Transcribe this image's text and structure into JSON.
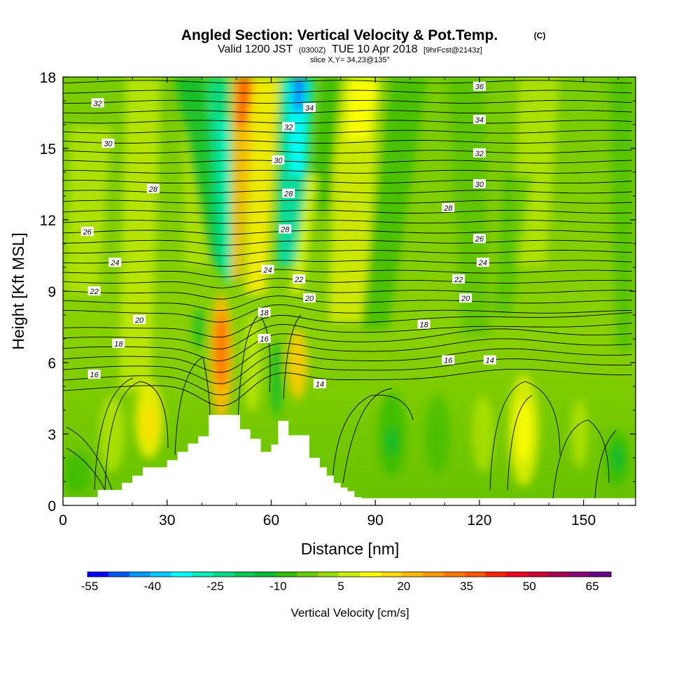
{
  "header": {
    "title": "Angled Section: Vertical Velocity & Pot.Temp.",
    "title_unit": "(C)",
    "valid_prefix": "Valid 1200 JST",
    "valid_utc": "(0300Z)",
    "valid_date": "TUE 10 Apr 2018",
    "forecast": "[9hrFcst@2143z]",
    "slice": "slice X,Y= 34,23@135°"
  },
  "chart_data": {
    "type": "heatmap",
    "title": "Angled Section: Vertical Velocity & Pot.Temp.",
    "xlabel": "Distance [nm]",
    "ylabel": "Height [Kft MSL]",
    "xlim": [
      0,
      165
    ],
    "ylim": [
      0,
      18
    ],
    "x_ticks": [
      "0",
      "30",
      "60",
      "90",
      "120",
      "150"
    ],
    "y_ticks": [
      "0",
      "3",
      "6",
      "9",
      "12",
      "15",
      "18"
    ],
    "colorbar": {
      "label": "Vertical Velocity [cm/s]",
      "tick_labels": [
        "-55",
        "-40",
        "-25",
        "-10",
        "5",
        "20",
        "35",
        "50",
        "65"
      ],
      "colors": [
        "#0000ff",
        "#0055ff",
        "#0099ff",
        "#00ccff",
        "#00ffff",
        "#00eebb",
        "#00dd88",
        "#00cc55",
        "#00bb33",
        "#33bb00",
        "#66cc00",
        "#99dd00",
        "#ccee00",
        "#ffff00",
        "#ffdd00",
        "#ffbb00",
        "#ff9900",
        "#ff7700",
        "#ff5500",
        "#ff2200",
        "#ee0022",
        "#cc0033",
        "#aa0055",
        "#880077",
        "#660088"
      ]
    },
    "terrain_kft": {
      "x": [
        0,
        10,
        10,
        17,
        17,
        20,
        20,
        23,
        23,
        30,
        30,
        33,
        33,
        36,
        36,
        39,
        39,
        42,
        42,
        51,
        51,
        54,
        54,
        57,
        57,
        60,
        60,
        62,
        62,
        65,
        65,
        71,
        71,
        74,
        74,
        76,
        76,
        78,
        78,
        80,
        80,
        82,
        82,
        84,
        84,
        86,
        86,
        90,
        90,
        165
      ],
      "y": [
        0.35,
        0.35,
        0.65,
        0.65,
        0.95,
        0.95,
        1.25,
        1.25,
        1.6,
        1.6,
        1.9,
        1.9,
        2.25,
        2.25,
        2.6,
        2.6,
        2.9,
        2.9,
        3.8,
        3.8,
        3.2,
        3.2,
        2.8,
        2.8,
        2.25,
        2.25,
        2.55,
        2.55,
        3.55,
        3.55,
        2.95,
        2.95,
        2.0,
        2.0,
        1.6,
        1.6,
        1.25,
        1.25,
        0.95,
        0.95,
        0.75,
        0.75,
        0.6,
        0.6,
        0.35,
        0.35,
        0.3,
        0.3,
        0.3,
        0.3
      ]
    },
    "isentrope_labels": [
      {
        "text": "36",
        "x": 120,
        "y": 17.6
      },
      {
        "text": "34",
        "x": 71,
        "y": 16.7
      },
      {
        "text": "34",
        "x": 120,
        "y": 16.2
      },
      {
        "text": "32",
        "x": 10,
        "y": 16.9
      },
      {
        "text": "32",
        "x": 65,
        "y": 15.9
      },
      {
        "text": "32",
        "x": 120,
        "y": 14.8
      },
      {
        "text": "30",
        "x": 13,
        "y": 15.2
      },
      {
        "text": "30",
        "x": 62,
        "y": 14.5
      },
      {
        "text": "30",
        "x": 120,
        "y": 13.5
      },
      {
        "text": "28",
        "x": 26,
        "y": 13.3
      },
      {
        "text": "28",
        "x": 65,
        "y": 13.1
      },
      {
        "text": "28",
        "x": 111,
        "y": 12.5
      },
      {
        "text": "28",
        "x": 64,
        "y": 11.6
      },
      {
        "text": "26",
        "x": 7,
        "y": 11.5
      },
      {
        "text": "26",
        "x": 120,
        "y": 11.2
      },
      {
        "text": "24",
        "x": 15,
        "y": 10.2
      },
      {
        "text": "24",
        "x": 59,
        "y": 9.9
      },
      {
        "text": "24",
        "x": 121,
        "y": 10.2
      },
      {
        "text": "22",
        "x": 9,
        "y": 9.0
      },
      {
        "text": "22",
        "x": 68,
        "y": 9.5
      },
      {
        "text": "22",
        "x": 114,
        "y": 9.5
      },
      {
        "text": "20",
        "x": 22,
        "y": 7.8
      },
      {
        "text": "20",
        "x": 71,
        "y": 8.7
      },
      {
        "text": "20",
        "x": 116,
        "y": 8.7
      },
      {
        "text": "18",
        "x": 16,
        "y": 6.8
      },
      {
        "text": "18",
        "x": 58,
        "y": 8.1
      },
      {
        "text": "18",
        "x": 104,
        "y": 7.6
      },
      {
        "text": "16",
        "x": 9,
        "y": 5.5
      },
      {
        "text": "16",
        "x": 58,
        "y": 7.0
      },
      {
        "text": "16",
        "x": 111,
        "y": 6.1
      },
      {
        "text": "14",
        "x": 74,
        "y": 5.1
      },
      {
        "text": "14",
        "x": 123,
        "y": 6.1
      }
    ]
  }
}
